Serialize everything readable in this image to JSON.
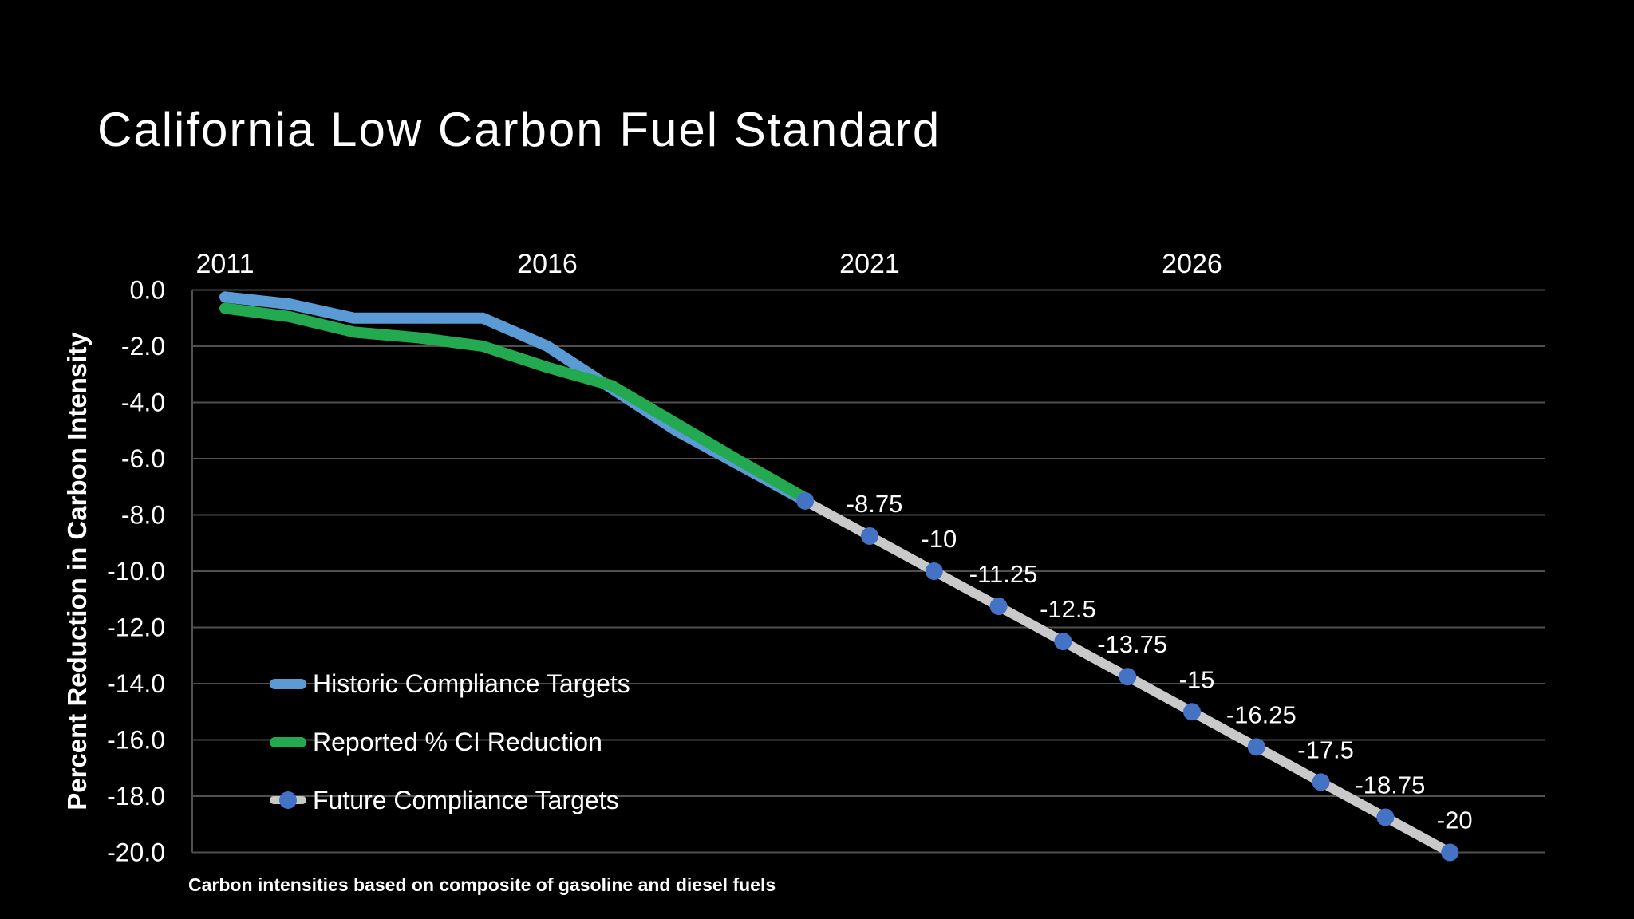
{
  "title": "California Low Carbon Fuel Standard",
  "y_axis_title": "Percent Reduction in Carbon Intensity",
  "footnote": "Carbon intensities based on composite of gasoline and diesel fuels",
  "colors": {
    "background": "#000000",
    "gridline": "#505050",
    "text": "#ffffff",
    "historic_blue": "#5b9bd5",
    "reported_green": "#23aa50",
    "future_gray": "#c9c9c9",
    "marker_blue": "#4472c4"
  },
  "legend": {
    "items": [
      {
        "label": "Historic Compliance Targets",
        "color": "#5b9bd5",
        "swatch": "line"
      },
      {
        "label": "Reported % CI Reduction",
        "color": "#23aa50",
        "swatch": "line"
      },
      {
        "label": "Future Compliance Targets",
        "color": "#c9c9c9",
        "marker_color": "#4472c4",
        "swatch": "line-with-dot"
      }
    ]
  },
  "chart_data": {
    "type": "line",
    "title": "California Low Carbon Fuel Standard",
    "xlabel": "",
    "ylabel": "Percent Reduction in Carbon Intensity",
    "grid": "horizontal",
    "legend_position": "inside-bottom-left",
    "ylim": [
      -20,
      0
    ],
    "xlim_years": [
      2010.5,
      2031.5
    ],
    "x_ticks": [
      {
        "label": "2011",
        "year": 2011
      },
      {
        "label": "2016",
        "year": 2016
      },
      {
        "label": "2021",
        "year": 2021
      },
      {
        "label": "2026",
        "year": 2026
      }
    ],
    "y_ticks": [
      {
        "label": "0.0",
        "value": 0
      },
      {
        "label": "-2.0",
        "value": -2
      },
      {
        "label": "-4.0",
        "value": -4
      },
      {
        "label": "-6.0",
        "value": -6
      },
      {
        "label": "-8.0",
        "value": -8
      },
      {
        "label": "-10.0",
        "value": -10
      },
      {
        "label": "-12.0",
        "value": -12
      },
      {
        "label": "-14.0",
        "value": -14
      },
      {
        "label": "-16.0",
        "value": -16
      },
      {
        "label": "-18.0",
        "value": -18
      },
      {
        "label": "-20.0",
        "value": -20
      }
    ],
    "series": [
      {
        "name": "Historic Compliance Targets",
        "color": "#5b9bd5",
        "years": [
          2011,
          2012,
          2013,
          2014,
          2015,
          2016,
          2017,
          2018,
          2019,
          2020
        ],
        "values": [
          -0.25,
          -0.5,
          -1.0,
          -1.0,
          -1.0,
          -2.0,
          -3.5,
          -5.0,
          -6.25,
          -7.5
        ]
      },
      {
        "name": "Reported % CI Reduction",
        "color": "#23aa50",
        "years": [
          2011,
          2012,
          2013,
          2014,
          2015,
          2016,
          2017,
          2018,
          2019,
          2020
        ],
        "values": [
          -0.65,
          -0.95,
          -1.5,
          -1.7,
          -2.0,
          -2.75,
          -3.4,
          -4.75,
          -6.1,
          -7.4
        ]
      },
      {
        "name": "Future Compliance Targets",
        "color": "#c9c9c9",
        "marker": "circle",
        "marker_color": "#4472c4",
        "years": [
          2020,
          2021,
          2022,
          2023,
          2024,
          2025,
          2026,
          2027,
          2028,
          2029,
          2030
        ],
        "values": [
          -7.5,
          -8.75,
          -10,
          -11.25,
          -12.5,
          -13.75,
          -15,
          -16.25,
          -17.5,
          -18.75,
          -20
        ],
        "point_labels": [
          "",
          "-8.75",
          "-10",
          "-11.25",
          "-12.5",
          "-13.75",
          "-15",
          "-16.25",
          "-17.5",
          "-18.75",
          "-20"
        ]
      }
    ]
  }
}
